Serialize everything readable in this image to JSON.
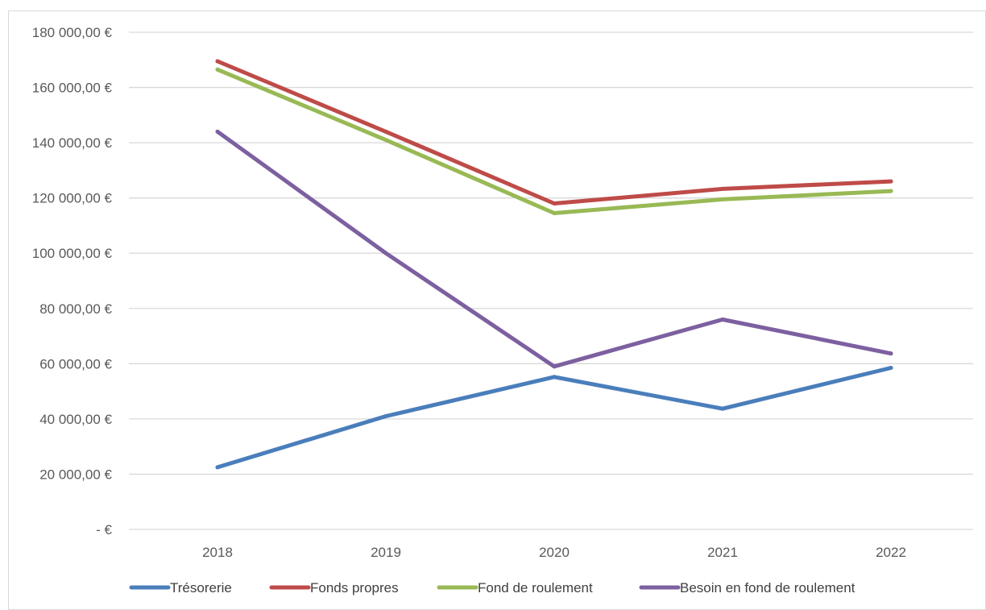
{
  "chart_data": {
    "type": "line",
    "categories": [
      "2018",
      "2019",
      "2020",
      "2021",
      "2022"
    ],
    "y_tick_labels": [
      "-  €",
      "20 000,00 €",
      "40 000,00 €",
      "60 000,00 €",
      "80 000,00 €",
      "100 000,00 €",
      "120 000,00 €",
      "140 000,00 €",
      "160 000,00 €",
      "180 000,00 €"
    ],
    "ylim": [
      0,
      180000
    ],
    "y_tick_step": 20000,
    "grid": true,
    "legend_position": "bottom",
    "series": [
      {
        "name": "Trésorerie",
        "color": "#4a7ebb",
        "values": [
          22500,
          41000,
          55200,
          43700,
          58500
        ]
      },
      {
        "name": "Fonds propres",
        "color": "#be4b48",
        "values": [
          169500,
          144000,
          118000,
          123300,
          126000
        ]
      },
      {
        "name": "Fond de roulement",
        "color": "#98b954",
        "values": [
          166500,
          141000,
          114500,
          119500,
          122500
        ]
      },
      {
        "name": "Besoin en fond de roulement",
        "color": "#7d60a0",
        "values": [
          144000,
          100000,
          59000,
          76000,
          63700
        ]
      }
    ]
  }
}
